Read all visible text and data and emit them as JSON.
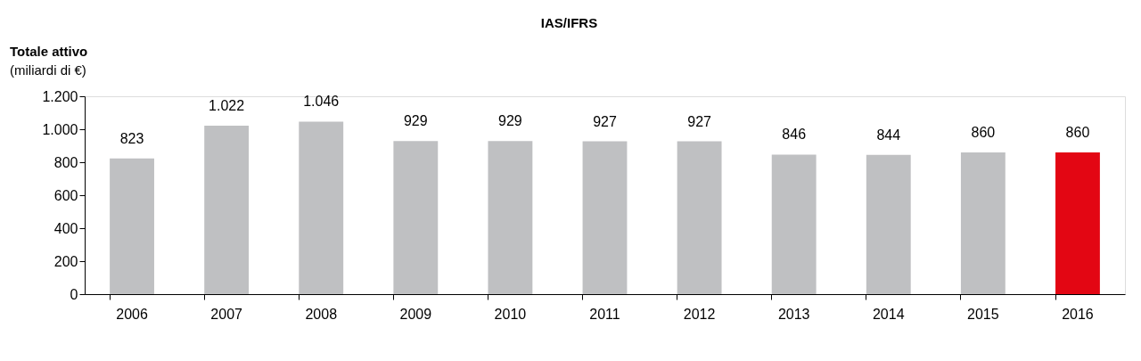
{
  "chart_data": {
    "type": "bar",
    "title": "IAS/IFRS",
    "ylabel": "Totale  attivo",
    "annotations": [
      "(miliardi di €)"
    ],
    "categories": [
      "2006",
      "2007",
      "2008",
      "2009",
      "2010",
      "2011",
      "2012",
      "2013",
      "2014",
      "2015",
      "2016"
    ],
    "values": [
      823,
      1022,
      1046,
      929,
      929,
      927,
      927,
      846,
      844,
      860,
      860
    ],
    "value_labels": [
      "823",
      "1.022",
      "1.046",
      "929",
      "929",
      "927",
      "927",
      "846",
      "844",
      "860",
      "860"
    ],
    "colors": [
      "#bfc0c2",
      "#bfc0c2",
      "#bfc0c2",
      "#bfc0c2",
      "#bfc0c2",
      "#bfc0c2",
      "#bfc0c2",
      "#bfc0c2",
      "#bfc0c2",
      "#bfc0c2",
      "#e30613"
    ],
    "ylim": [
      0,
      1200
    ],
    "yticks": [
      0,
      200,
      400,
      600,
      800,
      {
        "value": 1000,
        "label": "1.000"
      },
      {
        "value": 1200,
        "label": "1.200"
      }
    ],
    "grid": false
  }
}
